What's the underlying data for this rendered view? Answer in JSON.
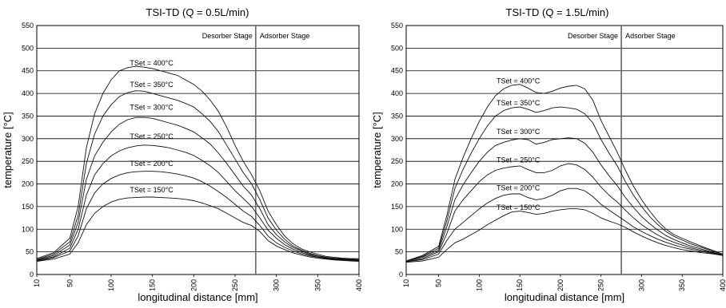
{
  "chart_data": [
    {
      "type": "line",
      "title": "TSI-TD (Q = 0.5L/min)",
      "xlabel": "longitudinal distance [mm]",
      "ylabel": "temperature [°C]",
      "xlim": [
        10,
        400
      ],
      "ylim": [
        0,
        550
      ],
      "x_ticks": [
        "10",
        "50",
        "100",
        "150",
        "200",
        "250",
        "300",
        "350",
        "400"
      ],
      "y_ticks": [
        "0",
        "50",
        "100",
        "150",
        "200",
        "250",
        "300",
        "350",
        "400",
        "450",
        "500",
        "550"
      ],
      "grid": "horizontal",
      "stage_boundary_x": 275,
      "stages": [
        "Desorber Stage",
        "Adsorber Stage"
      ],
      "series": [
        {
          "name": "TSet = 400°C",
          "label_at": [
            140,
            462
          ],
          "x": [
            10,
            30,
            50,
            60,
            70,
            80,
            90,
            100,
            110,
            120,
            130,
            140,
            150,
            160,
            170,
            180,
            190,
            200,
            210,
            220,
            230,
            240,
            250,
            260,
            270,
            280,
            290,
            300,
            310,
            320,
            330,
            340,
            350,
            360,
            370,
            380,
            390,
            400
          ],
          "y": [
            35,
            48,
            80,
            150,
            280,
            355,
            400,
            430,
            450,
            457,
            460,
            458,
            455,
            450,
            445,
            440,
            430,
            420,
            405,
            385,
            360,
            325,
            285,
            250,
            220,
            185,
            140,
            110,
            85,
            68,
            57,
            50,
            45,
            40,
            38,
            36,
            35,
            35
          ]
        },
        {
          "name": "TSet = 350°C",
          "label_at": [
            140,
            414
          ],
          "x": [
            10,
            30,
            50,
            60,
            70,
            80,
            90,
            100,
            110,
            120,
            130,
            140,
            150,
            160,
            170,
            180,
            190,
            200,
            210,
            220,
            230,
            240,
            250,
            260,
            270,
            280,
            290,
            300,
            310,
            320,
            330,
            340,
            350,
            360,
            370,
            380,
            390,
            400
          ],
          "y": [
            33,
            45,
            72,
            130,
            245,
            310,
            350,
            375,
            393,
            402,
            406,
            405,
            400,
            395,
            390,
            385,
            378,
            370,
            355,
            338,
            315,
            285,
            255,
            225,
            200,
            165,
            125,
            98,
            78,
            63,
            54,
            47,
            42,
            38,
            36,
            35,
            34,
            33
          ]
        },
        {
          "name": "TSet = 300°C",
          "label_at": [
            140,
            364
          ],
          "x": [
            10,
            30,
            50,
            60,
            70,
            80,
            90,
            100,
            110,
            120,
            130,
            140,
            150,
            160,
            170,
            180,
            190,
            200,
            210,
            220,
            230,
            240,
            250,
            260,
            270,
            280,
            290,
            300,
            310,
            320,
            330,
            340,
            350,
            360,
            370,
            380,
            390,
            400
          ],
          "y": [
            32,
            42,
            65,
            115,
            210,
            262,
            292,
            315,
            332,
            342,
            347,
            347,
            345,
            340,
            335,
            330,
            323,
            315,
            302,
            288,
            268,
            245,
            220,
            195,
            175,
            145,
            110,
            88,
            72,
            60,
            52,
            45,
            41,
            37,
            35,
            34,
            33,
            32
          ]
        },
        {
          "name": "TSet = 250°C",
          "label_at": [
            140,
            300
          ],
          "x": [
            10,
            30,
            50,
            60,
            70,
            80,
            90,
            100,
            110,
            120,
            130,
            140,
            150,
            160,
            170,
            180,
            190,
            200,
            210,
            220,
            230,
            240,
            250,
            260,
            270,
            280,
            290,
            300,
            310,
            320,
            330,
            340,
            350,
            360,
            370,
            380,
            390,
            400
          ],
          "y": [
            31,
            39,
            58,
            100,
            175,
            220,
            245,
            262,
            273,
            280,
            284,
            286,
            285,
            283,
            280,
            275,
            270,
            263,
            252,
            240,
            225,
            205,
            185,
            168,
            150,
            125,
            98,
            80,
            66,
            56,
            49,
            43,
            39,
            36,
            34,
            33,
            32,
            31
          ]
        },
        {
          "name": "TSet = 200°C",
          "label_at": [
            140,
            240
          ],
          "x": [
            10,
            30,
            50,
            60,
            70,
            80,
            90,
            100,
            110,
            120,
            130,
            140,
            150,
            160,
            170,
            180,
            190,
            200,
            210,
            220,
            230,
            240,
            250,
            260,
            270,
            280,
            290,
            300,
            310,
            320,
            330,
            340,
            350,
            360,
            370,
            380,
            390,
            400
          ],
          "y": [
            30,
            37,
            52,
            85,
            145,
            180,
            200,
            212,
            220,
            225,
            227,
            228,
            228,
            227,
            225,
            222,
            218,
            213,
            205,
            195,
            183,
            170,
            155,
            140,
            128,
            108,
            85,
            70,
            60,
            52,
            46,
            41,
            38,
            35,
            33,
            32,
            31,
            30
          ]
        },
        {
          "name": "TSet = 150°C",
          "label_at": [
            140,
            182
          ],
          "x": [
            10,
            30,
            50,
            60,
            70,
            80,
            90,
            100,
            110,
            120,
            130,
            140,
            150,
            160,
            170,
            180,
            190,
            200,
            210,
            220,
            230,
            240,
            250,
            260,
            270,
            280,
            290,
            300,
            310,
            320,
            330,
            340,
            350,
            360,
            370,
            380,
            390,
            400
          ],
          "y": [
            29,
            34,
            45,
            70,
            110,
            135,
            150,
            160,
            166,
            169,
            170,
            171,
            171,
            170,
            169,
            168,
            166,
            163,
            158,
            152,
            145,
            135,
            125,
            115,
            108,
            95,
            75,
            63,
            55,
            48,
            43,
            39,
            36,
            34,
            32,
            31,
            30,
            29
          ]
        }
      ]
    },
    {
      "type": "line",
      "title": "TSI-TD (Q = 1.5L/min)",
      "xlabel": "longitudinal distance [mm]",
      "ylabel": "temperature [°C]",
      "xlim": [
        10,
        400
      ],
      "ylim": [
        0,
        550
      ],
      "x_ticks": [
        "10",
        "50",
        "100",
        "150",
        "200",
        "250",
        "300",
        "350",
        "400"
      ],
      "y_ticks": [
        "0",
        "50",
        "100",
        "150",
        "200",
        "250",
        "300",
        "350",
        "400",
        "450",
        "500",
        "550"
      ],
      "grid": "horizontal",
      "stage_boundary_x": 275,
      "stages": [
        "Desorber Stage",
        "Adsorber Stage"
      ],
      "series": [
        {
          "name": "TSet = 400°C",
          "label_at": [
            139,
            422
          ],
          "x": [
            10,
            30,
            50,
            60,
            70,
            80,
            90,
            100,
            110,
            120,
            130,
            140,
            150,
            160,
            170,
            180,
            190,
            200,
            210,
            220,
            230,
            240,
            250,
            260,
            270,
            280,
            290,
            300,
            310,
            320,
            330,
            340,
            350,
            360,
            370,
            380,
            390,
            400
          ],
          "y": [
            30,
            42,
            62,
            130,
            210,
            258,
            300,
            338,
            370,
            395,
            410,
            418,
            420,
            412,
            402,
            400,
            405,
            412,
            416,
            418,
            410,
            385,
            340,
            305,
            270,
            230,
            195,
            165,
            140,
            118,
            100,
            88,
            80,
            72,
            65,
            58,
            52,
            45
          ]
        },
        {
          "name": "TSet = 350°C",
          "label_at": [
            139,
            374
          ],
          "x": [
            10,
            30,
            50,
            60,
            70,
            80,
            90,
            100,
            110,
            120,
            130,
            140,
            150,
            160,
            170,
            180,
            190,
            200,
            210,
            220,
            230,
            240,
            250,
            260,
            270,
            280,
            290,
            300,
            310,
            320,
            330,
            340,
            350,
            360,
            370,
            380,
            390,
            400
          ],
          "y": [
            29,
            40,
            58,
            118,
            190,
            232,
            268,
            300,
            328,
            350,
            362,
            368,
            370,
            365,
            358,
            362,
            368,
            370,
            368,
            365,
            355,
            335,
            298,
            268,
            240,
            205,
            175,
            150,
            128,
            110,
            95,
            84,
            76,
            68,
            62,
            56,
            50,
            44
          ]
        },
        {
          "name": "TSet = 300°C",
          "label_at": [
            139,
            310
          ],
          "x": [
            10,
            30,
            50,
            60,
            70,
            80,
            90,
            100,
            110,
            120,
            130,
            140,
            150,
            160,
            170,
            180,
            190,
            200,
            210,
            220,
            230,
            240,
            250,
            260,
            270,
            280,
            290,
            300,
            310,
            320,
            330,
            340,
            350,
            360,
            370,
            380,
            390,
            400
          ],
          "y": [
            29,
            38,
            54,
            105,
            165,
            198,
            225,
            250,
            270,
            285,
            292,
            297,
            300,
            298,
            288,
            292,
            298,
            300,
            302,
            300,
            290,
            270,
            242,
            218,
            196,
            170,
            148,
            128,
            112,
            98,
            86,
            77,
            70,
            63,
            58,
            53,
            48,
            43
          ]
        },
        {
          "name": "TSet = 250°C",
          "label_at": [
            139,
            248
          ],
          "x": [
            10,
            30,
            50,
            60,
            70,
            80,
            90,
            100,
            110,
            120,
            130,
            140,
            150,
            160,
            170,
            180,
            190,
            200,
            210,
            220,
            230,
            240,
            250,
            260,
            270,
            280,
            290,
            300,
            310,
            320,
            330,
            340,
            350,
            360,
            370,
            380,
            390,
            400
          ],
          "y": [
            28,
            35,
            50,
            90,
            140,
            165,
            185,
            205,
            220,
            230,
            235,
            238,
            240,
            232,
            225,
            225,
            230,
            240,
            245,
            242,
            232,
            215,
            193,
            175,
            160,
            142,
            125,
            110,
            98,
            87,
            78,
            71,
            65,
            59,
            55,
            51,
            47,
            42
          ]
        },
        {
          "name": "TSet = 200°C",
          "label_at": [
            139,
            186
          ],
          "x": [
            10,
            30,
            50,
            60,
            70,
            80,
            90,
            100,
            110,
            120,
            130,
            140,
            150,
            160,
            170,
            180,
            190,
            200,
            210,
            220,
            230,
            240,
            250,
            260,
            270,
            280,
            290,
            300,
            310,
            320,
            330,
            340,
            350,
            360,
            370,
            380,
            390,
            400
          ],
          "y": [
            28,
            33,
            45,
            75,
            100,
            115,
            130,
            145,
            158,
            168,
            175,
            178,
            178,
            170,
            165,
            168,
            175,
            185,
            190,
            190,
            185,
            172,
            155,
            142,
            130,
            118,
            105,
            95,
            86,
            78,
            71,
            65,
            60,
            56,
            52,
            49,
            46,
            42
          ]
        },
        {
          "name": "TSet = 150°C",
          "label_at": [
            139,
            143
          ],
          "x": [
            10,
            30,
            50,
            60,
            70,
            80,
            90,
            100,
            110,
            120,
            130,
            140,
            150,
            160,
            170,
            180,
            190,
            200,
            210,
            220,
            230,
            240,
            250,
            260,
            270,
            280,
            290,
            300,
            310,
            320,
            330,
            340,
            350,
            360,
            370,
            380,
            390,
            400
          ],
          "y": [
            27,
            30,
            38,
            55,
            70,
            78,
            88,
            98,
            110,
            120,
            130,
            138,
            140,
            137,
            133,
            135,
            140,
            143,
            145,
            145,
            143,
            135,
            125,
            118,
            112,
            104,
            94,
            85,
            77,
            70,
            64,
            59,
            55,
            52,
            49,
            47,
            45,
            42
          ]
        }
      ]
    }
  ]
}
